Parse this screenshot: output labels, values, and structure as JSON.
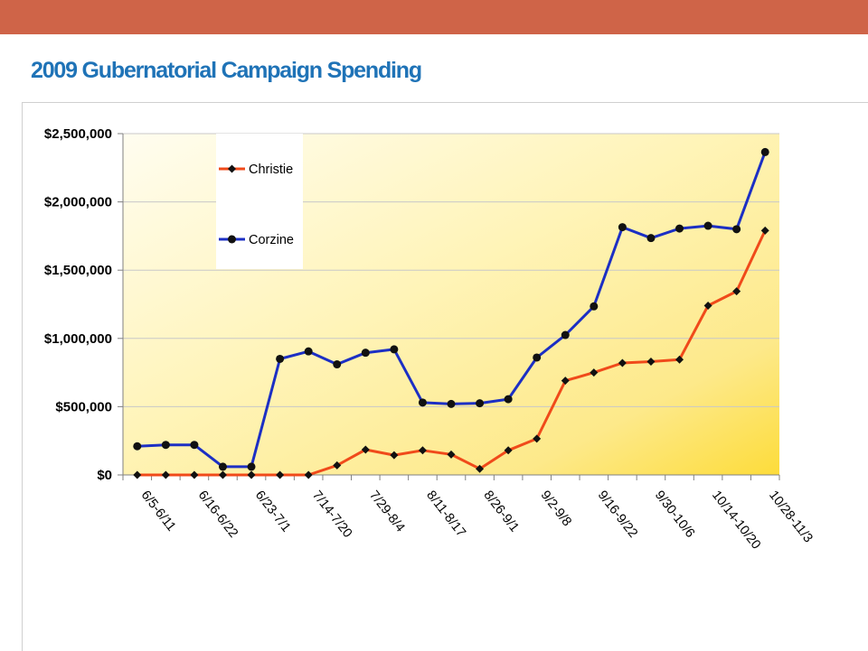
{
  "slide": {
    "title": "2009 Gubernatorial Campaign Spending",
    "accent_color": "#cf6448",
    "title_color": "#1f73b7"
  },
  "chart_data": {
    "type": "line",
    "title": "",
    "xlabel": "",
    "ylabel": "",
    "ylim": [
      0,
      2500000
    ],
    "y_ticks": [
      0,
      500000,
      1000000,
      1500000,
      2000000,
      2500000
    ],
    "y_tick_labels": [
      "$0",
      "$500,000",
      "$1,000,000",
      "$1,500,000",
      "$2,000,000",
      "$2,500,000"
    ],
    "category_labels": [
      "6/5-6/11",
      "6/16-6/22",
      "6/23-7/1",
      "7/14-7/20",
      "7/29-8/4",
      "8/11-8/17",
      "8/26-9/1",
      "9/2-9/8",
      "9/16-9/22",
      "9/30-10/6",
      "10/14-10/20",
      "10/28-11/3"
    ],
    "n_points": 23,
    "grid": true,
    "legend_position": "top-left",
    "series": [
      {
        "name": "Christie",
        "color": "#f04a1a",
        "marker": "diamond",
        "values": [
          0,
          0,
          0,
          0,
          0,
          0,
          0,
          70000,
          185000,
          145000,
          180000,
          150000,
          45000,
          180000,
          265000,
          690000,
          750000,
          820000,
          830000,
          845000,
          1240000,
          1345000,
          1790000
        ]
      },
      {
        "name": "Corzine",
        "color": "#1c2fc4",
        "marker": "circle",
        "values": [
          210000,
          220000,
          220000,
          60000,
          60000,
          850000,
          905000,
          810000,
          895000,
          920000,
          530000,
          520000,
          525000,
          555000,
          860000,
          1025000,
          1235000,
          1815000,
          1735000,
          1805000,
          1825000,
          1800000,
          2365000
        ]
      }
    ]
  }
}
